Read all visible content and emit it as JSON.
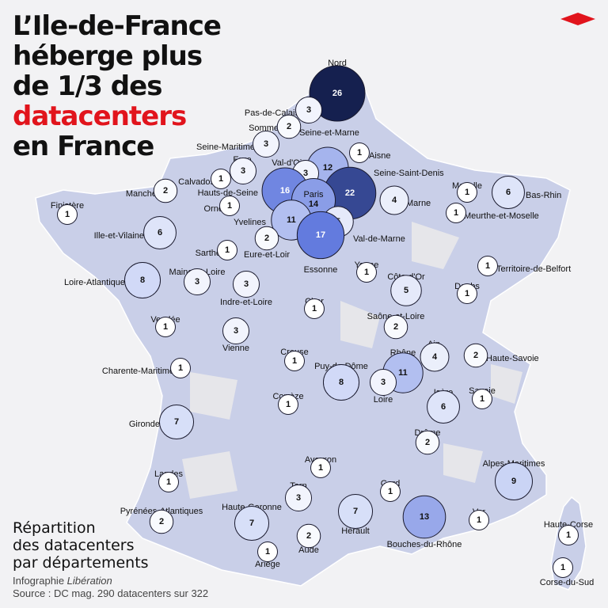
{
  "title": {
    "line1": "L’Ile-de-France",
    "line2": "héberge plus",
    "line3": "de 1/3 des",
    "line4_highlight": "datacenters",
    "line5": "en France"
  },
  "legend": {
    "line1": "Répartition",
    "line2": "des datacenters",
    "line3": "par départements"
  },
  "credit": {
    "prefix": "Infographie ",
    "publisher": "Libération",
    "source": "Source : DC mag. 290 datacenters sur 322"
  },
  "colors": {
    "background": "#f2f2f4",
    "land": "#c9cfe8",
    "land_empty": "#e6e6ea",
    "accent": "#e1141c",
    "scale_low": "#ffffff",
    "scale_high": "#15204f"
  },
  "icons": {
    "logo": "red-diamond-logo"
  },
  "chart_data": {
    "type": "bubble-map",
    "max_value": 26,
    "departments": [
      {
        "name": "Nord",
        "value": 26
      },
      {
        "name": "Pas-de-Calais",
        "value": 3
      },
      {
        "name": "Somme",
        "value": 2
      },
      {
        "name": "Seine-Maritime",
        "value": 3
      },
      {
        "name": "Seine-et-Marne",
        "value": 12
      },
      {
        "name": "Aisne",
        "value": 1
      },
      {
        "name": "Seine-Saint-Denis",
        "value": 22
      },
      {
        "name": "Eure",
        "value": 3
      },
      {
        "name": "Val-d'Oise",
        "value": 3
      },
      {
        "name": "Calvados",
        "value": 1
      },
      {
        "name": "Hauts-de-Seine",
        "value": 16
      },
      {
        "name": "Paris",
        "value": 14
      },
      {
        "name": "Manche",
        "value": 2
      },
      {
        "name": "Orne",
        "value": 1
      },
      {
        "name": "Yvelines",
        "value": 11
      },
      {
        "name": "Val-de-Marne",
        "value": 5
      },
      {
        "name": "Essonne",
        "value": 17
      },
      {
        "name": "Marne",
        "value": 4
      },
      {
        "name": "Moselle",
        "value": 1
      },
      {
        "name": "Bas-Rhin",
        "value": 6
      },
      {
        "name": "Meurthe-et-Moselle",
        "value": 1
      },
      {
        "name": "Finistère",
        "value": 1
      },
      {
        "name": "Ille-et-Vilaine",
        "value": 6
      },
      {
        "name": "Sarthe",
        "value": 1
      },
      {
        "name": "Eure-et-Loir",
        "value": 2
      },
      {
        "name": "Territoire-de-Belfort",
        "value": 1
      },
      {
        "name": "Yonne",
        "value": 1
      },
      {
        "name": "Maine-et-Loire",
        "value": 3
      },
      {
        "name": "Loire-Atlantique",
        "value": 8
      },
      {
        "name": "Indre-et-Loire",
        "value": 3
      },
      {
        "name": "Côte-d'Or",
        "value": 5
      },
      {
        "name": "Doubs",
        "value": 1
      },
      {
        "name": "Cher",
        "value": 1
      },
      {
        "name": "Vendée",
        "value": 1
      },
      {
        "name": "Saône-et-Loire",
        "value": 2
      },
      {
        "name": "Vienne",
        "value": 3
      },
      {
        "name": "Ain",
        "value": 4
      },
      {
        "name": "Haute-Savoie",
        "value": 2
      },
      {
        "name": "Creuse",
        "value": 1
      },
      {
        "name": "Rhône",
        "value": 11
      },
      {
        "name": "Charente-Maritime",
        "value": 1
      },
      {
        "name": "Puy-de-Dôme",
        "value": 8
      },
      {
        "name": "Loire",
        "value": 3
      },
      {
        "name": "Corrèze",
        "value": 1
      },
      {
        "name": "Isère",
        "value": 6
      },
      {
        "name": "Savoie",
        "value": 1
      },
      {
        "name": "Gironde",
        "value": 7
      },
      {
        "name": "Drôme",
        "value": 2
      },
      {
        "name": "Aveyron",
        "value": 1
      },
      {
        "name": "Alpes-Maritimes",
        "value": 9
      },
      {
        "name": "Landes",
        "value": 1
      },
      {
        "name": "Gard",
        "value": 1
      },
      {
        "name": "Tarn",
        "value": 3
      },
      {
        "name": "Pyrénées-Atlantiques",
        "value": 2
      },
      {
        "name": "Haute-Garonne",
        "value": 7
      },
      {
        "name": "Hérault",
        "value": 7
      },
      {
        "name": "Bouches-du-Rhône",
        "value": 13
      },
      {
        "name": "Var",
        "value": 1
      },
      {
        "name": "Haute-Corse",
        "value": 1
      },
      {
        "name": "Aude",
        "value": 2
      },
      {
        "name": "Ariège",
        "value": 1
      },
      {
        "name": "Corse-du-Sud",
        "value": 1
      }
    ]
  }
}
